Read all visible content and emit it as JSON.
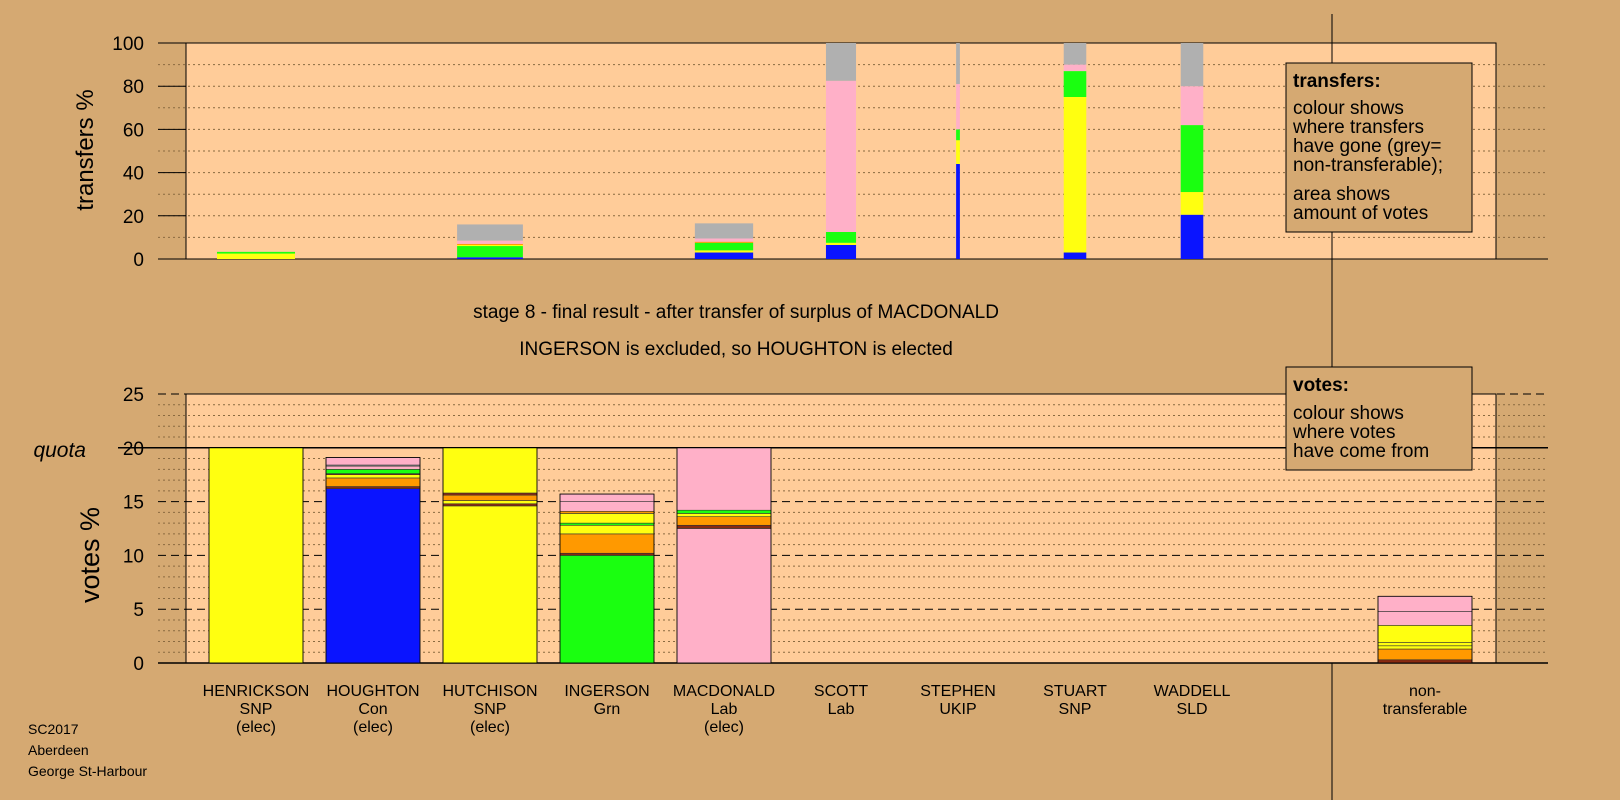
{
  "colors": {
    "background": "#d5a972",
    "plot_area": "#ffcc99",
    "blue": "#0a14ff",
    "yellow": "#ffff10",
    "green": "#1aff10",
    "pink": "#ffb0c8",
    "orange": "#ff9900",
    "grey": "#b0b0b0",
    "dark": "#8a2a10"
  },
  "chart_data": [
    {
      "type": "bar",
      "id": "transfers",
      "ylabel": "transfers %",
      "ylim": [
        0,
        100
      ],
      "yticks": [
        0,
        20,
        40,
        60,
        80,
        100
      ],
      "legend": {
        "title": "transfers:",
        "lines_a": [
          "colour shows",
          "where transfers",
          "have gone (grey=",
          "non-transferable);"
        ],
        "lines_b": [
          "area shows",
          "amount of votes"
        ]
      },
      "bars": [
        {
          "candidate": "HENRICKSON",
          "rel_width": 0.83,
          "segments": [
            [
              "yellow",
              2.5
            ],
            [
              "green",
              0.8
            ]
          ]
        },
        {
          "candidate": "HUTCHISON",
          "rel_width": 0.7,
          "segments": [
            [
              "blue",
              0.8
            ],
            [
              "green",
              5.2
            ],
            [
              "yellow",
              0.5
            ],
            [
              "orange",
              0.5
            ],
            [
              "pink",
              1.5
            ],
            [
              "grey",
              7.5
            ]
          ]
        },
        {
          "candidate": "MACDONALD",
          "rel_width": 0.62,
          "segments": [
            [
              "blue",
              3
            ],
            [
              "yellow",
              1
            ],
            [
              "green",
              3.5
            ],
            [
              "orange",
              0.5
            ],
            [
              "pink",
              1.5
            ],
            [
              "grey",
              7
            ]
          ]
        },
        {
          "candidate": "SCOTT",
          "rel_width": 0.32,
          "segments": [
            [
              "blue",
              6.5
            ],
            [
              "yellow",
              1
            ],
            [
              "green",
              5
            ],
            [
              "pink",
              70
            ],
            [
              "grey",
              17.5
            ]
          ]
        },
        {
          "candidate": "STEPHEN",
          "rel_width": 0.04,
          "segments": [
            [
              "blue",
              44
            ],
            [
              "yellow",
              11
            ],
            [
              "green",
              5
            ],
            [
              "pink",
              21
            ],
            [
              "grey",
              19
            ]
          ]
        },
        {
          "candidate": "STUART",
          "rel_width": 0.24,
          "segments": [
            [
              "blue",
              3
            ],
            [
              "yellow",
              72
            ],
            [
              "green",
              12
            ],
            [
              "pink",
              3
            ],
            [
              "grey",
              10
            ]
          ]
        },
        {
          "candidate": "WADDELL",
          "rel_width": 0.24,
          "segments": [
            [
              "blue",
              20.5
            ],
            [
              "yellow",
              10.5
            ],
            [
              "green",
              31
            ],
            [
              "pink",
              18
            ],
            [
              "grey",
              20
            ]
          ]
        }
      ]
    },
    {
      "type": "bar",
      "id": "votes",
      "title": "stage 8 - final result - after transfer of surplus of MACDONALD",
      "subtitle": "INGERSON is excluded, so HOUGHTON is elected",
      "ylabel": "votes %",
      "ylim": [
        0,
        25
      ],
      "yticks": [
        0,
        5,
        10,
        15,
        20,
        25
      ],
      "quota": 20,
      "quota_label": "quota",
      "legend": {
        "title": "votes:",
        "lines": [
          "colour shows",
          "where votes",
          "have come from"
        ]
      },
      "categories": [
        {
          "name": "HENRICKSON",
          "party": "SNP",
          "status": "(elec)",
          "segments": [
            [
              "yellow",
              20
            ]
          ]
        },
        {
          "name": "HOUGHTON",
          "party": "Con",
          "status": "(elec)",
          "segments": [
            [
              "blue",
              16.2
            ],
            [
              "dark",
              0.2
            ],
            [
              "orange",
              0.8
            ],
            [
              "yellow",
              0.3
            ],
            [
              "dark",
              0.1
            ],
            [
              "green",
              0.4
            ],
            [
              "pink",
              0.3
            ],
            [
              "grey",
              0.1
            ],
            [
              "pink",
              0.7
            ]
          ]
        },
        {
          "name": "HUTCHISON",
          "party": "SNP",
          "status": "(elec)",
          "segments": [
            [
              "yellow",
              14.6
            ],
            [
              "dark",
              0.2
            ],
            [
              "yellow",
              0.3
            ],
            [
              "orange",
              0.5
            ],
            [
              "dark",
              0.2
            ],
            [
              "yellow",
              4.2
            ]
          ]
        },
        {
          "name": "INGERSON",
          "party": "Grn",
          "status": "",
          "segments": [
            [
              "green",
              10
            ],
            [
              "dark",
              0.2
            ],
            [
              "orange",
              1.8
            ],
            [
              "yellow",
              0.8
            ],
            [
              "green",
              0.2
            ],
            [
              "yellow",
              0.9
            ],
            [
              "orange",
              0.2
            ],
            [
              "pink",
              0.9
            ],
            [
              "pink",
              0.7
            ]
          ]
        },
        {
          "name": "MACDONALD",
          "party": "Lab",
          "status": "(elec)",
          "segments": [
            [
              "pink",
              12.5
            ],
            [
              "dark",
              0.3
            ],
            [
              "orange",
              0.8
            ],
            [
              "yellow",
              0.3
            ],
            [
              "green",
              0.3
            ],
            [
              "pink",
              5.8
            ]
          ]
        },
        {
          "name": "SCOTT",
          "party": "Lab",
          "status": "",
          "segments": []
        },
        {
          "name": "STEPHEN",
          "party": "UKIP",
          "status": "",
          "segments": []
        },
        {
          "name": "STUART",
          "party": "SNP",
          "status": "",
          "segments": []
        },
        {
          "name": "WADDELL",
          "party": "SLD",
          "status": "",
          "segments": []
        }
      ],
      "non_transferable": {
        "label_line1": "non-",
        "label_line2": "transferable",
        "segments": [
          [
            "dark",
            0.3
          ],
          [
            "orange",
            1.0
          ],
          [
            "yellow",
            0.3
          ],
          [
            "yellow",
            0.3
          ],
          [
            "yellow",
            1.6
          ],
          [
            "pink",
            1.3
          ],
          [
            "pink",
            1.4
          ]
        ]
      }
    }
  ],
  "footer": {
    "line1": "SC2017",
    "line2": "Aberdeen",
    "line3": "George St-Harbour"
  }
}
